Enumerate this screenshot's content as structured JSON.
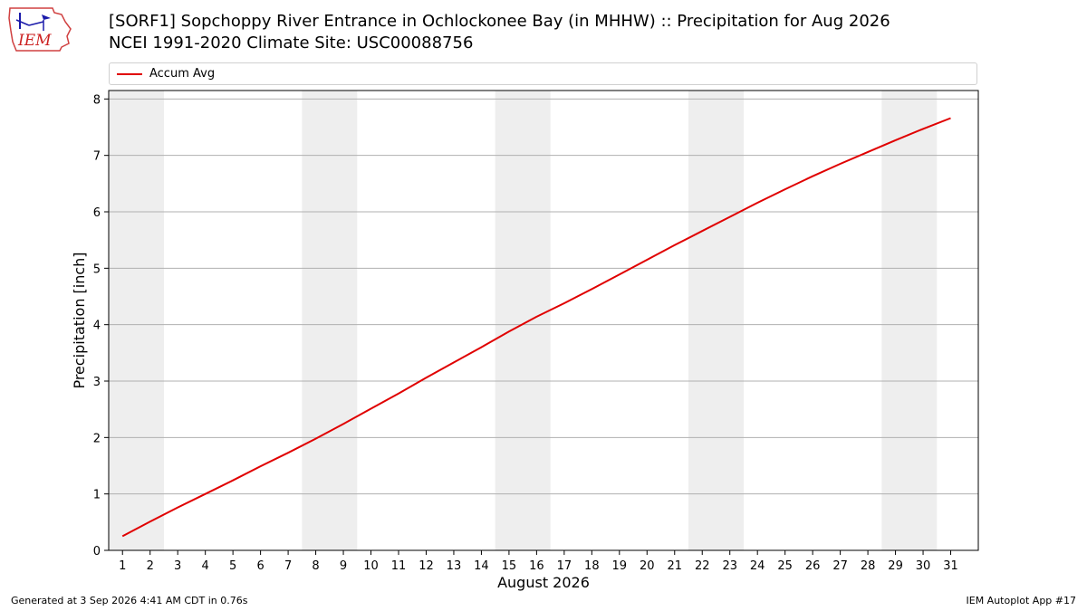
{
  "header": {
    "logo_text": "IEM",
    "title_line1": "[SORF1] Sopchoppy River Entrance in Ochlockonee Bay (in MHHW) :: Precipitation for Aug 2026",
    "title_line2": "NCEI 1991-2020 Climate Site: USC00088756"
  },
  "legend": {
    "label": "Accum Avg",
    "color": "#e00000"
  },
  "footer": {
    "generated": "Generated at 3 Sep 2026 4:41 AM CDT in 0.76s",
    "app": "IEM Autoplot App #17"
  },
  "chart_data": {
    "type": "line",
    "xlabel": "August 2026",
    "ylabel": "Precipitation [inch]",
    "xlim": [
      0.5,
      32
    ],
    "ylim": [
      0,
      8.15
    ],
    "yticks": [
      0,
      1,
      2,
      3,
      4,
      5,
      6,
      7,
      8
    ],
    "xticks": [
      1,
      2,
      3,
      4,
      5,
      6,
      7,
      8,
      9,
      10,
      11,
      12,
      13,
      14,
      15,
      16,
      17,
      18,
      19,
      20,
      21,
      22,
      23,
      24,
      25,
      26,
      27,
      28,
      29,
      30,
      31
    ],
    "weekend_shading": [
      [
        0.5,
        2.5
      ],
      [
        7.5,
        9.5
      ],
      [
        14.5,
        16.5
      ],
      [
        21.5,
        23.5
      ],
      [
        28.5,
        30.5
      ]
    ],
    "grid": "horizontal",
    "legend_position": "top",
    "series": [
      {
        "name": "Accum Avg",
        "color": "#e00000",
        "x": [
          1,
          2,
          3,
          4,
          5,
          6,
          7,
          8,
          9,
          10,
          11,
          12,
          13,
          14,
          15,
          16,
          17,
          18,
          19,
          20,
          21,
          22,
          23,
          24,
          25,
          26,
          27,
          28,
          29,
          30,
          31
        ],
        "values": [
          0.25,
          0.51,
          0.76,
          1.0,
          1.24,
          1.49,
          1.73,
          1.98,
          2.24,
          2.51,
          2.78,
          3.06,
          3.33,
          3.6,
          3.88,
          4.14,
          4.38,
          4.63,
          4.89,
          5.15,
          5.41,
          5.66,
          5.91,
          6.16,
          6.4,
          6.63,
          6.85,
          7.06,
          7.27,
          7.47,
          7.66
        ]
      }
    ]
  }
}
